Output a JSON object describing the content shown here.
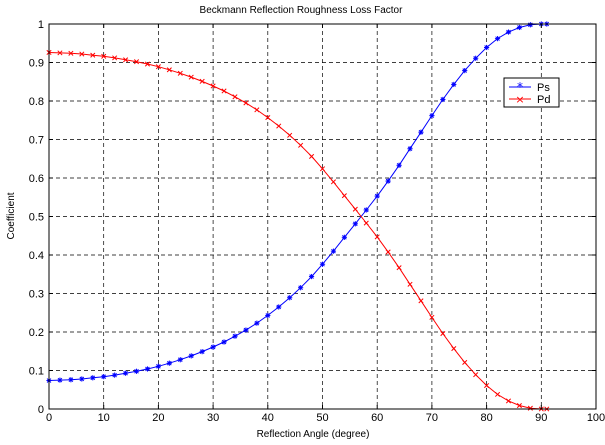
{
  "chart_data": {
    "type": "line",
    "title": "Beckmann Reflection Roughness Loss Factor",
    "xlabel": "Reflection Angle (degree)",
    "ylabel": "Coefficient",
    "xlim": [
      0,
      100
    ],
    "ylim": [
      0,
      1
    ],
    "xticks": [
      "0",
      "10",
      "20",
      "30",
      "40",
      "50",
      "60",
      "70",
      "80",
      "90",
      "100"
    ],
    "yticks": [
      "0",
      "0.1",
      "0.2",
      "0.3",
      "0.4",
      "0.5",
      "0.6",
      "0.7",
      "0.8",
      "0.9",
      "1"
    ],
    "grid": true,
    "legend_position": "top-right",
    "x": [
      0,
      2,
      4,
      6,
      8,
      10,
      12,
      14,
      16,
      18,
      20,
      22,
      24,
      26,
      28,
      30,
      32,
      34,
      36,
      38,
      40,
      42,
      44,
      46,
      48,
      50,
      52,
      54,
      56,
      58,
      60,
      62,
      64,
      66,
      68,
      70,
      72,
      74,
      76,
      78,
      80,
      82,
      84,
      86,
      88,
      90,
      91
    ],
    "series": [
      {
        "name": "Ps",
        "color": "#0000ff",
        "marker": "*",
        "values": [
          0.074,
          0.075,
          0.076,
          0.078,
          0.081,
          0.084,
          0.088,
          0.093,
          0.098,
          0.104,
          0.111,
          0.119,
          0.128,
          0.138,
          0.149,
          0.161,
          0.174,
          0.189,
          0.205,
          0.223,
          0.243,
          0.265,
          0.289,
          0.315,
          0.344,
          0.376,
          0.41,
          0.446,
          0.481,
          0.517,
          0.553,
          0.592,
          0.633,
          0.676,
          0.719,
          0.762,
          0.804,
          0.843,
          0.879,
          0.911,
          0.939,
          0.962,
          0.979,
          0.991,
          0.998,
          1.0,
          1.0
        ]
      },
      {
        "name": "Pd",
        "color": "#ff0000",
        "marker": "x",
        "values": [
          0.926,
          0.925,
          0.924,
          0.922,
          0.919,
          0.916,
          0.912,
          0.907,
          0.902,
          0.896,
          0.889,
          0.881,
          0.872,
          0.862,
          0.851,
          0.839,
          0.826,
          0.811,
          0.795,
          0.777,
          0.757,
          0.735,
          0.711,
          0.685,
          0.656,
          0.624,
          0.59,
          0.554,
          0.519,
          0.483,
          0.447,
          0.408,
          0.367,
          0.324,
          0.281,
          0.238,
          0.196,
          0.157,
          0.121,
          0.089,
          0.061,
          0.038,
          0.021,
          0.009,
          0.002,
          0.0,
          0.0
        ]
      }
    ]
  }
}
